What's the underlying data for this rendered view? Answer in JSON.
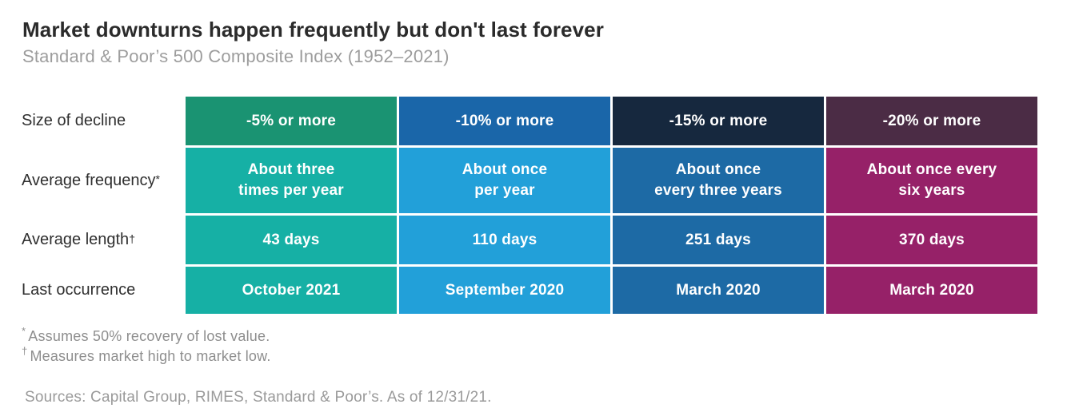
{
  "header": {
    "title": "Market downturns happen frequently but don't last forever",
    "subtitle": "Standard & Poor’s 500 Composite Index (1952–2021)"
  },
  "chart_data": {
    "type": "table",
    "title": "Market downturns happen frequently but don't last forever",
    "subtitle": "Standard & Poor’s 500 Composite Index (1952–2021)",
    "row_labels": [
      {
        "text": "Size of decline",
        "sup": ""
      },
      {
        "text": "Average frequency",
        "sup": "*"
      },
      {
        "text": "Average length",
        "sup": "†"
      },
      {
        "text": "Last occurrence",
        "sup": ""
      }
    ],
    "columns": [
      {
        "decline": "-5% or more",
        "frequency": "About three\ntimes per year",
        "length": "43 days",
        "length_days": 43,
        "last_occurrence": "October 2021",
        "header_color": "#1a9372",
        "body_color": "#16b0a5"
      },
      {
        "decline": "-10% or more",
        "frequency": "About once\nper year",
        "length": "110 days",
        "length_days": 110,
        "last_occurrence": "September 2020",
        "header_color": "#1a66a9",
        "body_color": "#22a0d9"
      },
      {
        "decline": "-15% or more",
        "frequency": "About once\nevery three years",
        "length": "251 days",
        "length_days": 251,
        "last_occurrence": "March 2020",
        "header_color": "#16283e",
        "body_color": "#1d6aa5"
      },
      {
        "decline": "-20% or more",
        "frequency": "About once every\nsix years",
        "length": "370 days",
        "length_days": 370,
        "last_occurrence": "March 2020",
        "header_color": "#4b2c45",
        "body_color": "#962168"
      }
    ]
  },
  "footnotes": [
    {
      "marker": "*",
      "text": "Assumes 50% recovery of lost value."
    },
    {
      "marker": "†",
      "text": "Measures market high to market low."
    }
  ],
  "sources": "Sources: Capital Group, RIMES, Standard & Poor’s. As of 12/31/21."
}
